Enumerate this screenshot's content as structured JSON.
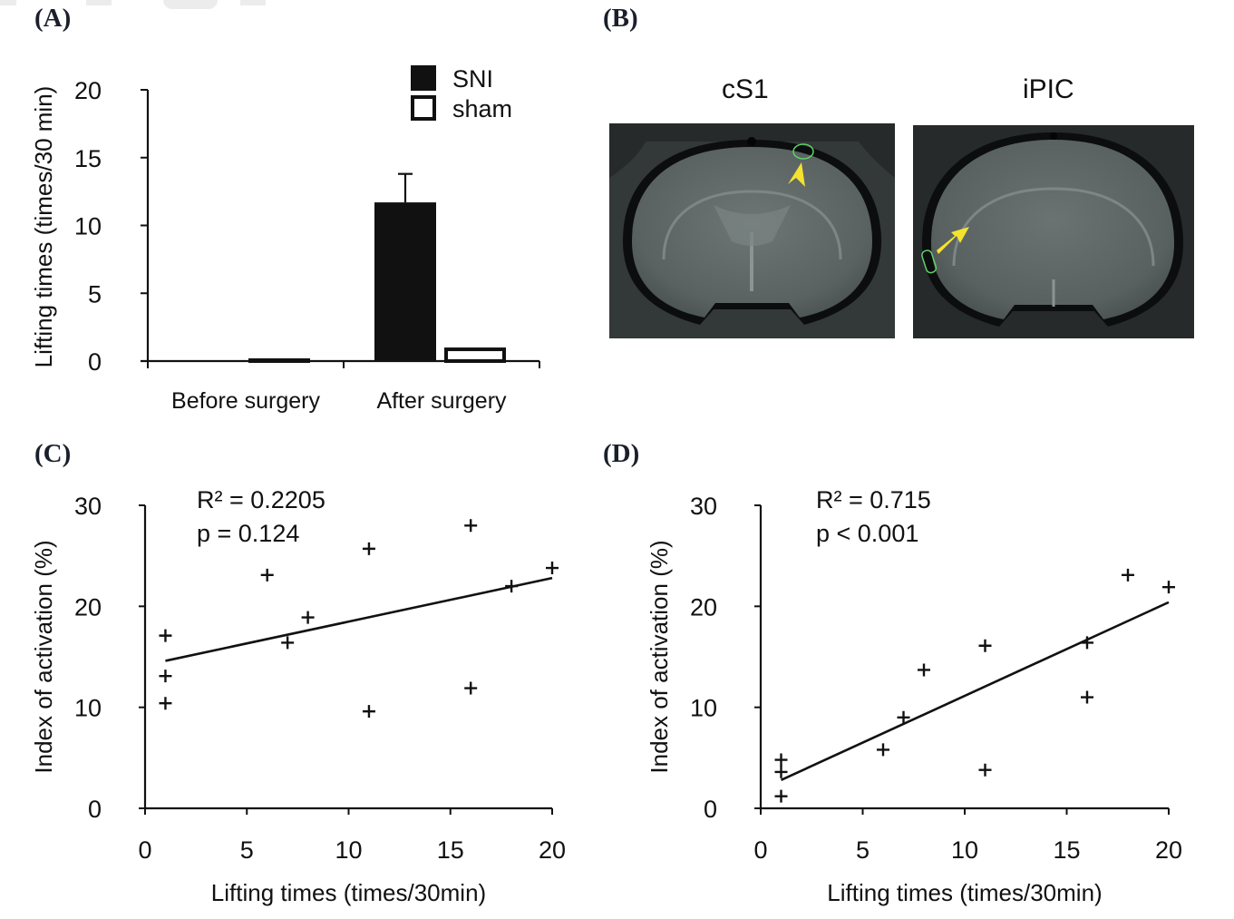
{
  "panels": {
    "a": {
      "letter": "(A)"
    },
    "b": {
      "letter": "(B)",
      "images": [
        {
          "title": "cS1",
          "roi_color": "#5fd068",
          "arrow_color": "#f5e22f"
        },
        {
          "title": "iPIC",
          "roi_color": "#5fd068",
          "arrow_color": "#f5e22f"
        }
      ]
    },
    "c": {
      "letter": "(C)"
    },
    "d": {
      "letter": "(D)"
    }
  },
  "chart_data": [
    {
      "id": "A",
      "type": "bar",
      "title": "",
      "xlabel": "",
      "ylabel": "Lifting times (times/30 min)",
      "categories": [
        "Before surgery",
        "After surgery"
      ],
      "series": [
        {
          "name": "SNI",
          "values": [
            0,
            11.7
          ],
          "error": [
            0,
            2.1
          ],
          "fill": "#111111"
        },
        {
          "name": "sham",
          "values": [
            0.2,
            1.0
          ],
          "error": [
            0,
            0
          ],
          "fill": "#ffffff"
        }
      ],
      "ylim": [
        0,
        20
      ],
      "yticks": [
        0,
        5,
        10,
        15,
        20
      ],
      "legend": {
        "position": "top-right",
        "entries": [
          "SNI",
          "sham"
        ]
      },
      "grid": false
    },
    {
      "id": "C",
      "type": "scatter",
      "xlabel": "Lifting times (times/30min)",
      "ylabel": "Index of activation (%)",
      "xlim": [
        0,
        20
      ],
      "ylim": [
        0,
        30
      ],
      "xticks": [
        0,
        5,
        10,
        15,
        20
      ],
      "yticks": [
        0,
        10,
        20,
        30
      ],
      "annotation": [
        "R² = 0.2205",
        "p = 0.124"
      ],
      "points": [
        [
          1,
          17.1
        ],
        [
          1,
          13.1
        ],
        [
          1,
          10.4
        ],
        [
          6,
          23.1
        ],
        [
          7,
          16.4
        ],
        [
          8,
          18.9
        ],
        [
          11,
          25.7
        ],
        [
          11,
          9.6
        ],
        [
          16,
          28.0
        ],
        [
          16,
          11.9
        ],
        [
          18,
          22.0
        ],
        [
          20,
          23.8
        ]
      ],
      "trendline": [
        [
          1,
          14.6
        ],
        [
          20,
          22.8
        ]
      ],
      "grid": false
    },
    {
      "id": "D",
      "type": "scatter",
      "xlabel": "Lifting times (times/30min)",
      "ylabel": "Index of activation (%)",
      "xlim": [
        0,
        20
      ],
      "ylim": [
        0,
        30
      ],
      "xticks": [
        0,
        5,
        10,
        15,
        20
      ],
      "yticks": [
        0,
        10,
        20,
        30
      ],
      "annotation": [
        "R² = 0.715",
        "p < 0.001"
      ],
      "points": [
        [
          1,
          4.8
        ],
        [
          1,
          3.6
        ],
        [
          1,
          1.2
        ],
        [
          6,
          5.8
        ],
        [
          7,
          9.0
        ],
        [
          8,
          13.7
        ],
        [
          11,
          16.1
        ],
        [
          11,
          3.8
        ],
        [
          16,
          16.4
        ],
        [
          16,
          11.0
        ],
        [
          18,
          23.1
        ],
        [
          20,
          21.9
        ]
      ],
      "trendline": [
        [
          1,
          2.8
        ],
        [
          20,
          20.4
        ]
      ],
      "grid": false
    }
  ]
}
